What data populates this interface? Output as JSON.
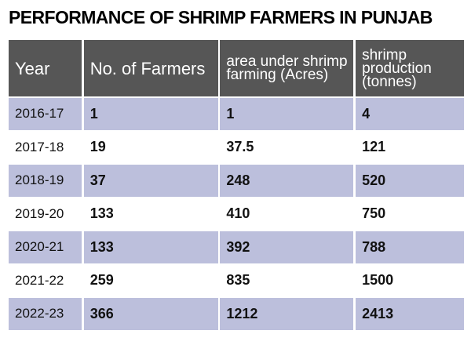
{
  "title": "PERFORMANCE OF SHRIMP FARMERS IN PUNJAB",
  "colors": {
    "header_bg": "#565656",
    "row_tint": "#bcbfdc"
  },
  "chart_data": {
    "type": "table",
    "title": "PERFORMANCE OF SHRIMP FARMERS IN PUNJAB",
    "columns": [
      "Year",
      "No. of Farmers",
      "area under shrimp farming (Acres)",
      "shrimp production (tonnes)"
    ],
    "rows": [
      [
        "2016-17",
        "1",
        "1",
        "4"
      ],
      [
        "2017-18",
        "19",
        "37.5",
        "121"
      ],
      [
        "2018-19",
        "37",
        "248",
        "520"
      ],
      [
        "2019-20",
        "133",
        "410",
        "750"
      ],
      [
        "2020-21",
        "133",
        "392",
        "788"
      ],
      [
        "2021-22",
        "259",
        "835",
        "1500"
      ],
      [
        "2022-23",
        "366",
        "1212",
        "2413"
      ]
    ]
  }
}
